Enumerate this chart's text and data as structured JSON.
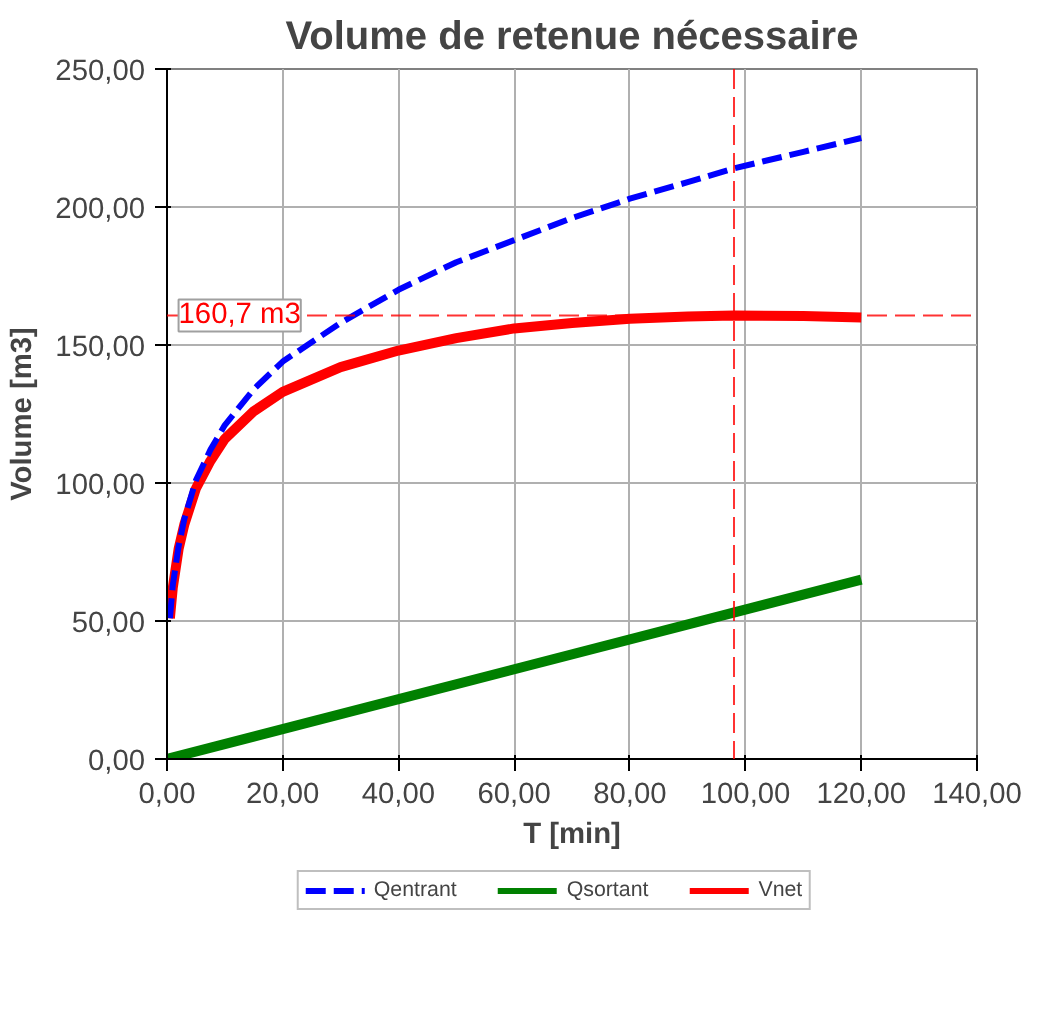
{
  "chart_data": {
    "type": "line",
    "title": "Volume de retenue nécessaire",
    "xlabel": "T [min]",
    "ylabel": "Volume [m3]",
    "x": [
      0.5,
      1,
      2,
      3,
      5,
      7.5,
      10,
      15,
      20,
      30,
      40,
      50,
      60,
      70,
      80,
      90,
      98,
      110,
      120
    ],
    "series": [
      {
        "name": "Qentrant",
        "color": "#0000ff",
        "line_style": "dashed",
        "values": [
          51,
          63,
          77,
          87,
          101,
          112,
          121,
          134,
          144,
          158,
          170,
          180,
          188,
          196,
          203,
          209,
          214,
          220,
          225
        ]
      },
      {
        "name": "Qsortant",
        "color": "#008000",
        "x": [
          0,
          120
        ],
        "values": [
          0,
          65
        ]
      },
      {
        "name": "Vnet",
        "color": "#ff0000",
        "values": [
          51,
          62,
          76,
          85,
          98,
          108,
          116,
          126,
          133,
          142,
          148,
          152.5,
          156,
          158,
          159.5,
          160.3,
          160.7,
          160.5,
          160
        ]
      }
    ],
    "xlim": [
      0,
      140
    ],
    "ylim": [
      0,
      250
    ],
    "xticks": [
      {
        "value": 0,
        "label": "0,00"
      },
      {
        "value": 20,
        "label": "20,00"
      },
      {
        "value": 40,
        "label": "40,00"
      },
      {
        "value": 60,
        "label": "60,00"
      },
      {
        "value": 80,
        "label": "80,00"
      },
      {
        "value": 100,
        "label": "100,00"
      },
      {
        "value": 120,
        "label": "120,00"
      },
      {
        "value": 140,
        "label": "140,00"
      }
    ],
    "yticks": [
      {
        "value": 0,
        "label": "0,00"
      },
      {
        "value": 50,
        "label": "50,00"
      },
      {
        "value": 100,
        "label": "100,00"
      },
      {
        "value": 150,
        "label": "150,00"
      },
      {
        "value": 200,
        "label": "200,00"
      },
      {
        "value": 250,
        "label": "250,00"
      }
    ],
    "ref_lines": [
      {
        "axis": "y",
        "value": 160.7,
        "label": "160,7 m3",
        "color": "#ff0000",
        "line_style": "dashed"
      },
      {
        "axis": "x",
        "value": 98,
        "color": "#ff0000",
        "line_style": "dashed"
      }
    ],
    "grid": true,
    "legend": "bottom",
    "line_style": "solid",
    "marker": "none"
  }
}
